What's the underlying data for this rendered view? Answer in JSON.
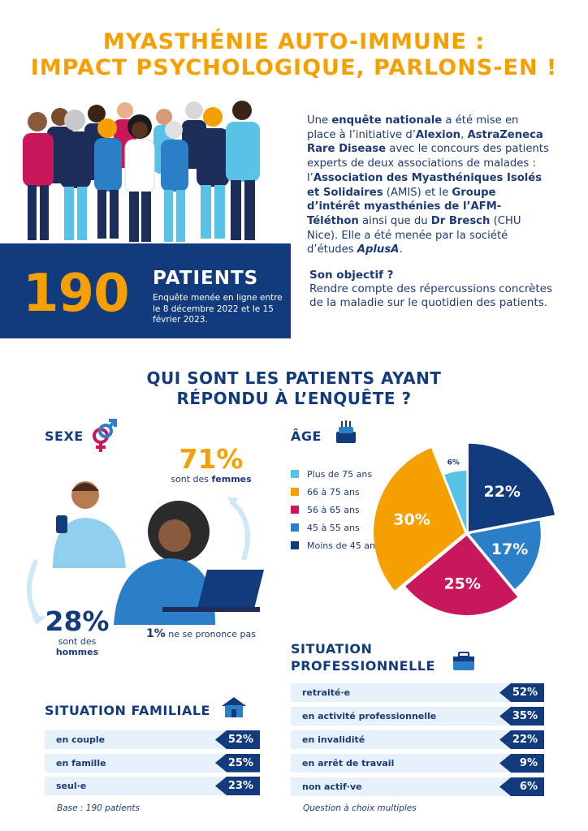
{
  "title": {
    "line1": "MYASTHÉNIE AUTO-IMMUNE :",
    "line2": "IMPACT PSYCHOLOGIQUE, PARLONS-EN !"
  },
  "intro": {
    "t1": "Une ",
    "b1": "enquête nationale",
    "t2": " a été mise en place à l’initiative d’",
    "b2": "Alexion",
    "t3": ", ",
    "b3": "AstraZeneca Rare Disease",
    "t4": " avec le concours des patients experts de deux associations de malades : l’",
    "b4": "Association des Myasthéniques Isolés et Solidaires",
    "t5": " (AMIS) et le ",
    "b5": "Groupe d’intérêt myasthénies de l’AFM-Téléthon",
    "t6": " ainsi que du ",
    "b6": "Dr Bresch",
    "t7": " (CHU Nice). Elle a été menée par la société d’études ",
    "b7": "AplusA",
    "t8": "."
  },
  "stats": {
    "count": "190",
    "label": "PATIENTS",
    "sub": "Enquête menée en ligne entre le 8 décembre 2022 et le 15 février 2023."
  },
  "objective": {
    "heading": "Son objectif ?",
    "text": "Rendre compte des répercussions concrètes de la maladie sur le quotidien des patients."
  },
  "question": {
    "line1": "QUI SONT LES PATIENTS AYANT",
    "line2": "RÉPONDU À L’ENQUÊTE ?"
  },
  "sexe": {
    "heading": "SEXE",
    "women_pct": "71%",
    "women_pre": "sont des ",
    "women_bold": "femmes",
    "men_pct": "28%",
    "men_pre": "sont des ",
    "men_bold": "hommes",
    "other_pct": "1%",
    "other_text": " ne se prononce pas"
  },
  "age": {
    "heading": "ÂGE",
    "legend": [
      {
        "label": "Plus de 75 ans",
        "color": "#5bc2e7"
      },
      {
        "label": "66 à 75 ans",
        "color": "#f5a000"
      },
      {
        "label": "56 à 65 ans",
        "color": "#c8175a"
      },
      {
        "label": "45 à 55 ans",
        "color": "#2a7fc6"
      },
      {
        "label": "Moins de 45 ans",
        "color": "#123b7e"
      }
    ]
  },
  "chart_data": {
    "type": "pie",
    "slices": [
      {
        "label": "Moins de 45 ans",
        "value": 22,
        "text": "22%",
        "color": "#123b7e"
      },
      {
        "label": "45 à 55 ans",
        "value": 17,
        "text": "17%",
        "color": "#2a7fc6"
      },
      {
        "label": "56 à 65 ans",
        "value": 25,
        "text": "25%",
        "color": "#c8175a"
      },
      {
        "label": "66 à 75 ans",
        "value": 30,
        "text": "30%",
        "color": "#f5a000"
      },
      {
        "label": "Plus de 75 ans",
        "value": 6,
        "text": "6%",
        "color": "#5bc2e7"
      }
    ]
  },
  "familiale": {
    "heading": "SITUATION FAMILIALE",
    "rows": [
      {
        "label": "en couple",
        "value": "52%"
      },
      {
        "label": "en famille",
        "value": "25%"
      },
      {
        "label": "seul·e",
        "value": "23%"
      }
    ],
    "note": "Base : 190 patients"
  },
  "pro": {
    "heading1": "SITUATION",
    "heading2": "PROFESSIONNELLE",
    "rows": [
      {
        "label": "retraité·e",
        "value": "52%"
      },
      {
        "label": "en activité professionnelle",
        "value": "35%"
      },
      {
        "label": "en invalidité",
        "value": "22%"
      },
      {
        "label": "en arrêt de travail",
        "value": "9%"
      },
      {
        "label": "non actif·ve",
        "value": "6%"
      }
    ],
    "note": "Question à choix multiples"
  }
}
